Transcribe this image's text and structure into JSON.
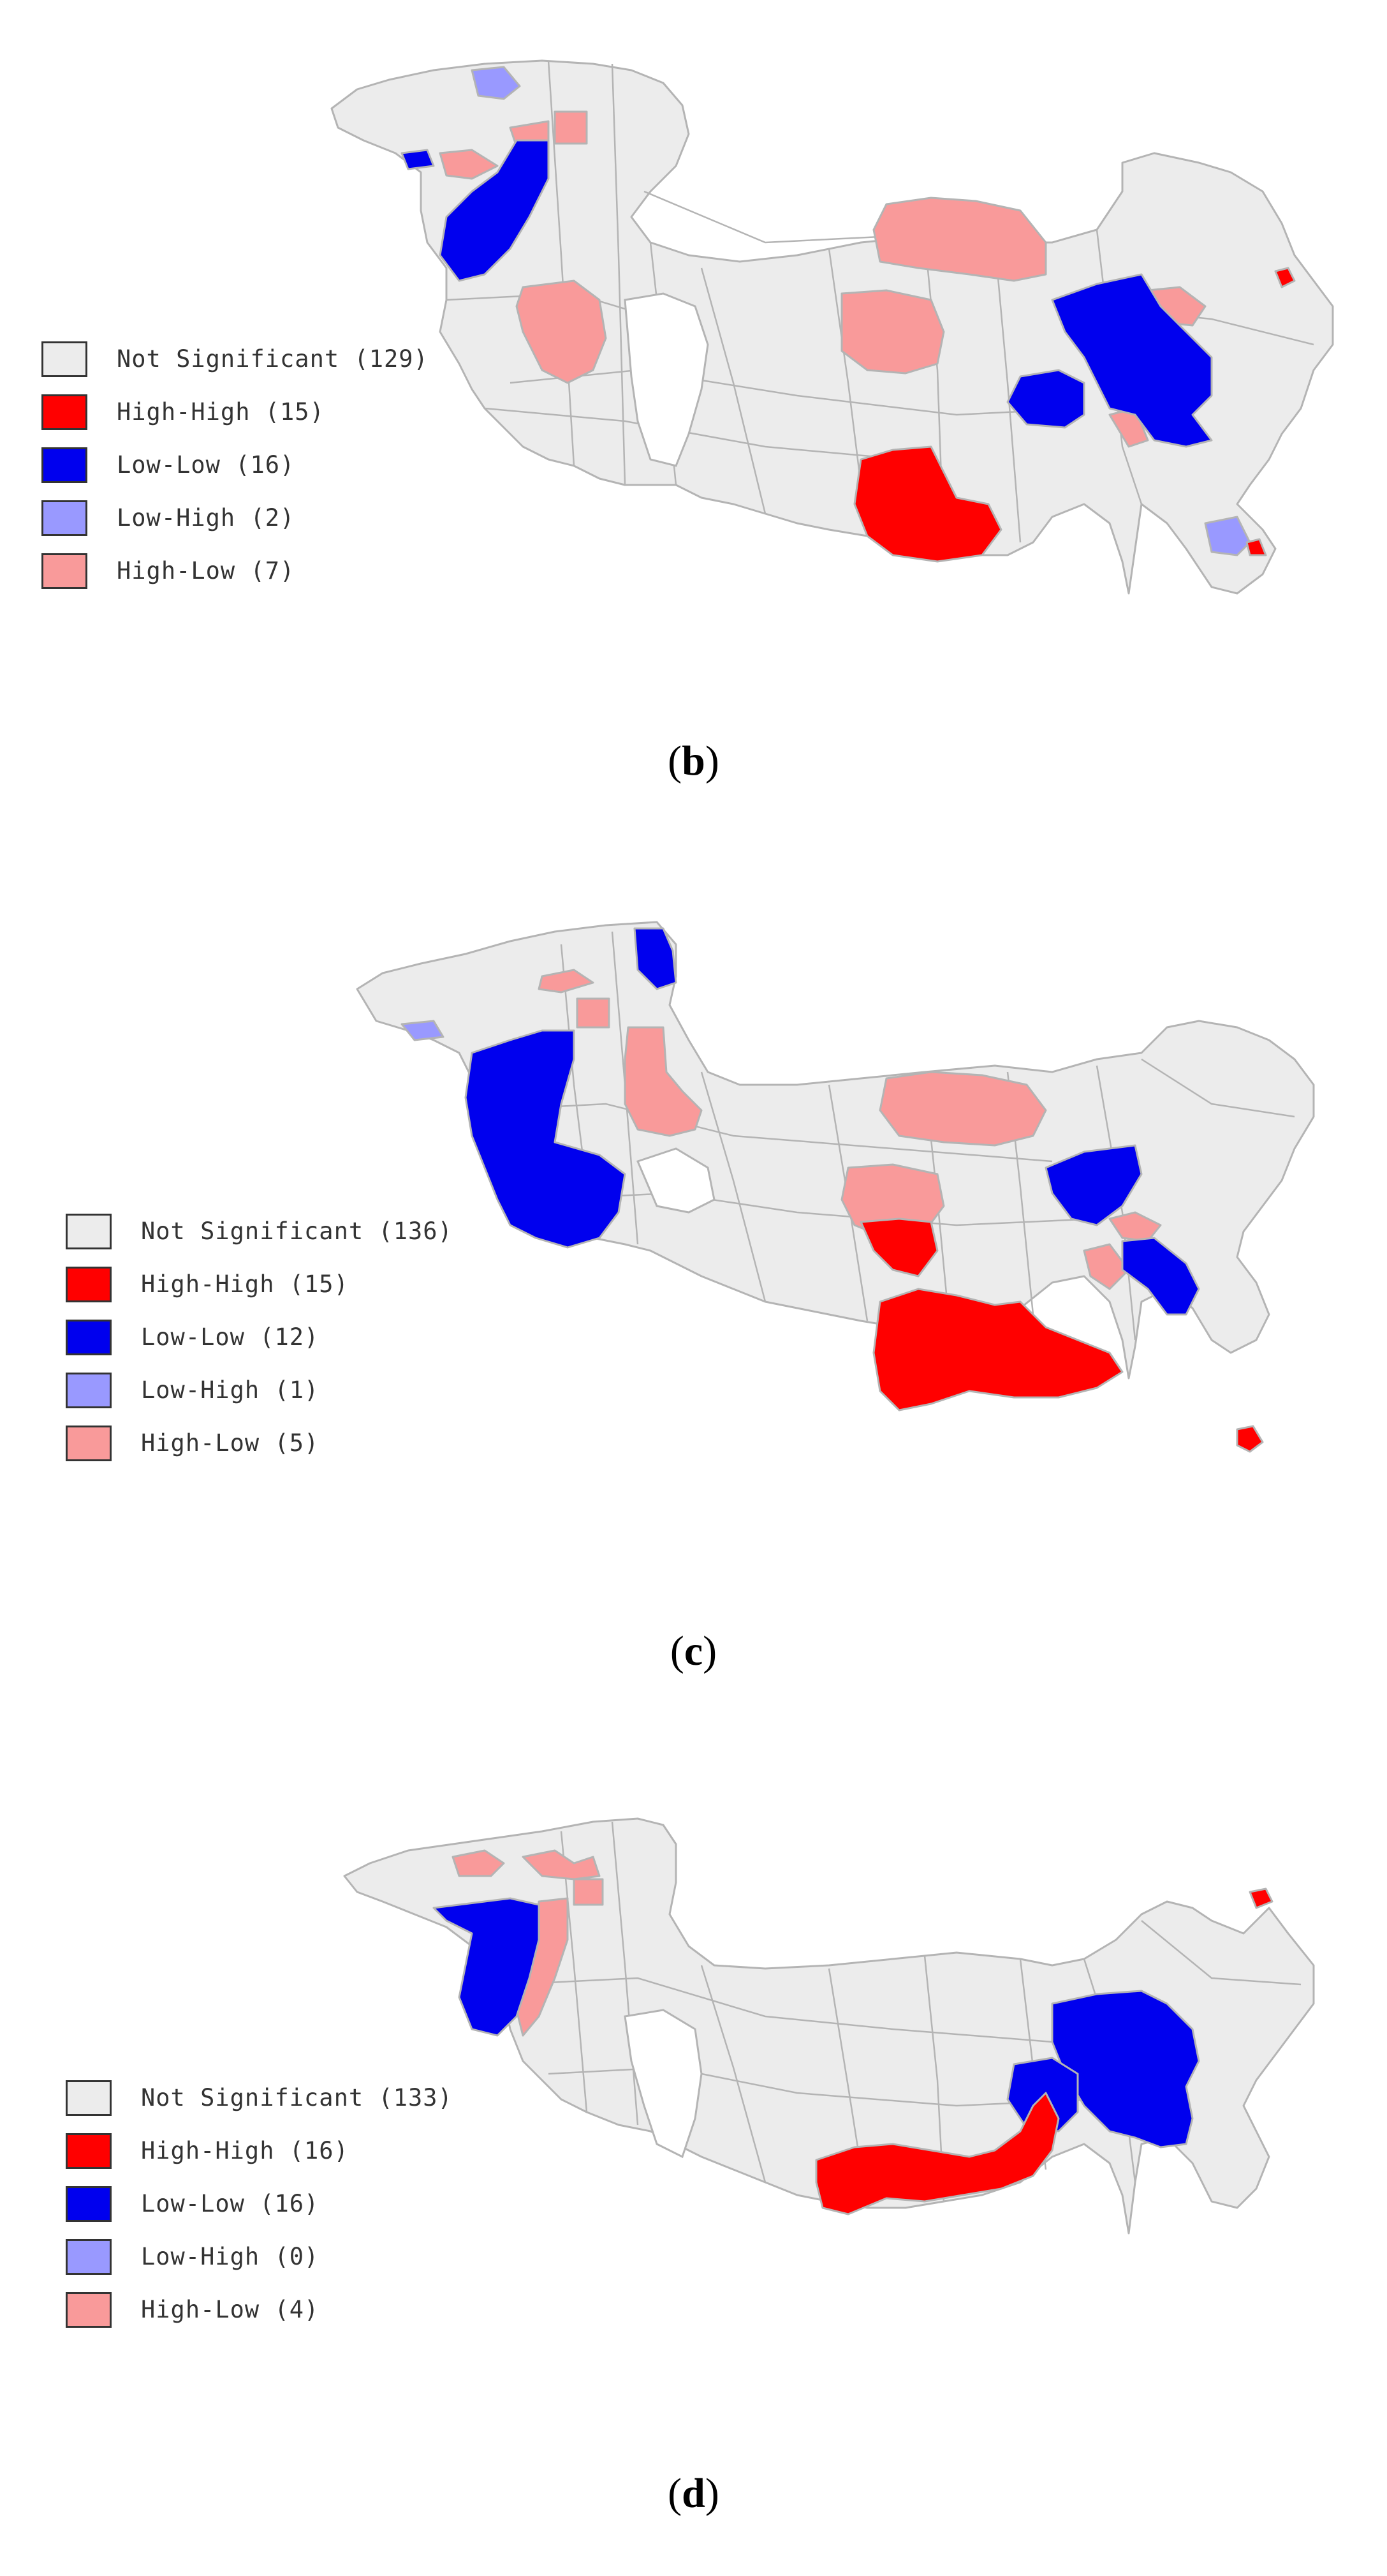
{
  "colors": {
    "not_significant": "#ececec",
    "high_high": "#ff0000",
    "low_low": "#0000ee",
    "low_high": "#9999ff",
    "high_low": "#f99a9a",
    "border": "#b4b4b4"
  },
  "panels": [
    {
      "caption_letter": "b",
      "legend": [
        {
          "label": "Not Significant (129)",
          "color_key": "not_significant"
        },
        {
          "label": "High-High (15)",
          "color_key": "high_high"
        },
        {
          "label": "Low-Low (16)",
          "color_key": "low_low"
        },
        {
          "label": "Low-High (2)",
          "color_key": "low_high"
        },
        {
          "label": "High-Low (7)",
          "color_key": "high_low"
        }
      ]
    },
    {
      "caption_letter": "c",
      "legend": [
        {
          "label": "Not Significant (136)",
          "color_key": "not_significant"
        },
        {
          "label": "High-High (15)",
          "color_key": "high_high"
        },
        {
          "label": "Low-Low (12)",
          "color_key": "low_low"
        },
        {
          "label": "Low-High (1)",
          "color_key": "low_high"
        },
        {
          "label": "High-Low (5)",
          "color_key": "high_low"
        }
      ]
    },
    {
      "caption_letter": "d",
      "legend": [
        {
          "label": "Not Significant (133)",
          "color_key": "not_significant"
        },
        {
          "label": "High-High (16)",
          "color_key": "high_high"
        },
        {
          "label": "Low-Low (16)",
          "color_key": "low_low"
        },
        {
          "label": "Low-High (0)",
          "color_key": "low_high"
        },
        {
          "label": "High-Low (4)",
          "color_key": "high_low"
        }
      ]
    }
  ]
}
